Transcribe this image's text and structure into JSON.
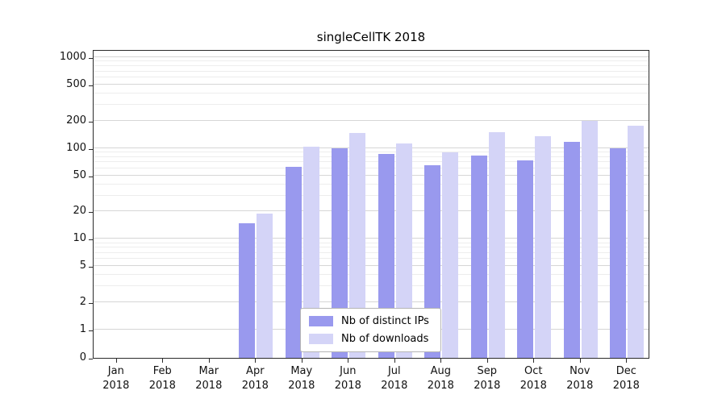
{
  "chart_data": {
    "type": "bar",
    "scale": "symlog",
    "title": "singleCellTK 2018",
    "xlabel": "",
    "ylabel": "",
    "grid": true,
    "legend_position": "lower-center",
    "year": "2018",
    "categories": [
      "Jan",
      "Feb",
      "Mar",
      "Apr",
      "May",
      "Jun",
      "Jul",
      "Aug",
      "Sep",
      "Oct",
      "Nov",
      "Dec"
    ],
    "yticks": [
      0,
      1,
      2,
      5,
      10,
      20,
      50,
      100,
      200,
      500,
      1000
    ],
    "ylim": [
      0,
      1100
    ],
    "series": [
      {
        "name": "Nb of distinct IPs",
        "color": "#9999ee",
        "values": [
          0,
          0,
          0,
          15,
          62,
          100,
          87,
          65,
          82,
          73,
          117,
          100
        ]
      },
      {
        "name": "Nb of downloads",
        "color": "#d4d4f7",
        "values": [
          0,
          0,
          0,
          19,
          103,
          148,
          112,
          90,
          150,
          135,
          200,
          175
        ]
      }
    ]
  }
}
